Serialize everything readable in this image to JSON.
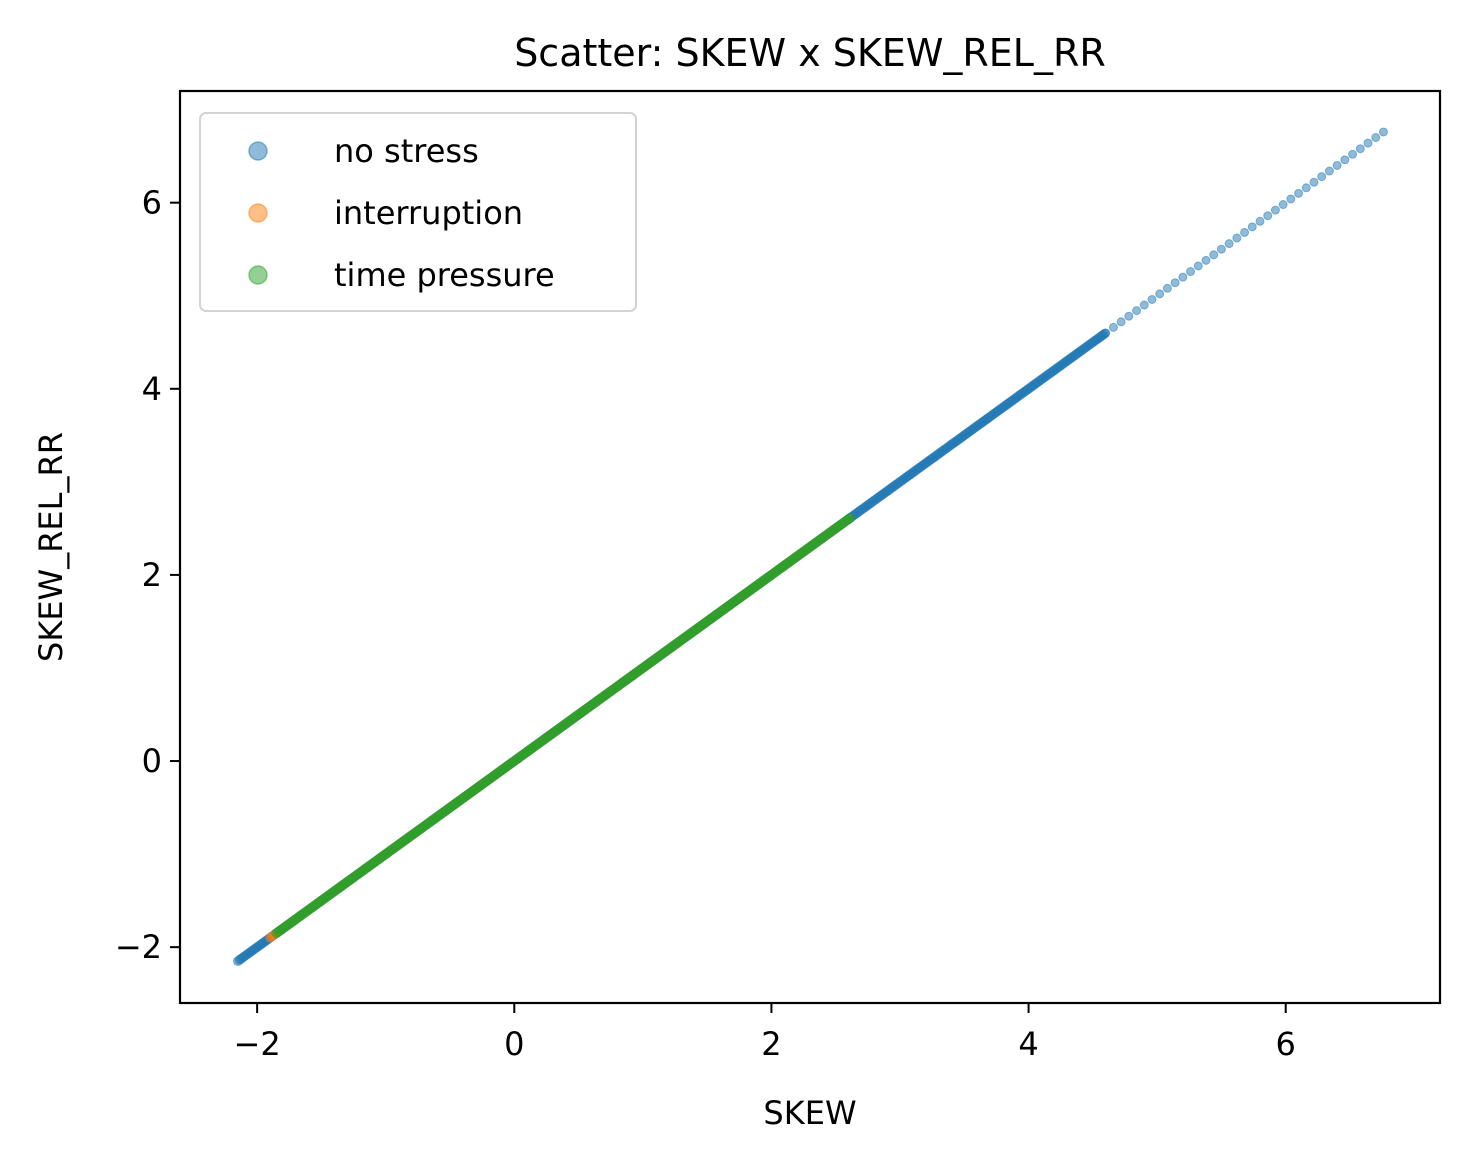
{
  "chart_data": {
    "type": "scatter",
    "title": "Scatter: SKEW x SKEW_REL_RR",
    "xlabel": "SKEW",
    "ylabel": "SKEW_REL_RR",
    "xlim": [
      -2.6,
      7.2
    ],
    "ylim": [
      -2.6,
      7.2
    ],
    "xticks": [
      -2,
      0,
      2,
      4,
      6
    ],
    "yticks": [
      -2,
      0,
      2,
      4,
      6
    ],
    "xtick_labels": [
      "−2",
      "0",
      "2",
      "4",
      "6"
    ],
    "ytick_labels": [
      "−2",
      "0",
      "2",
      "4",
      "6"
    ],
    "grid": false,
    "legend_position": "upper-left",
    "series": [
      {
        "name": "no stress",
        "color": "#1f77b4",
        "alpha": 0.5,
        "x_range": [
          -2.15,
          6.78
        ],
        "relation": "y = x",
        "dense_until": 4.6,
        "sparse_after": 4.6
      },
      {
        "name": "interruption",
        "color": "#ff7f0e",
        "alpha": 0.5,
        "x_range": [
          -1.9,
          2.6
        ],
        "relation": "y = x"
      },
      {
        "name": "time pressure",
        "color": "#2ca02c",
        "alpha": 0.5,
        "x_range": [
          -1.85,
          2.62
        ],
        "relation": "y = x"
      }
    ]
  }
}
